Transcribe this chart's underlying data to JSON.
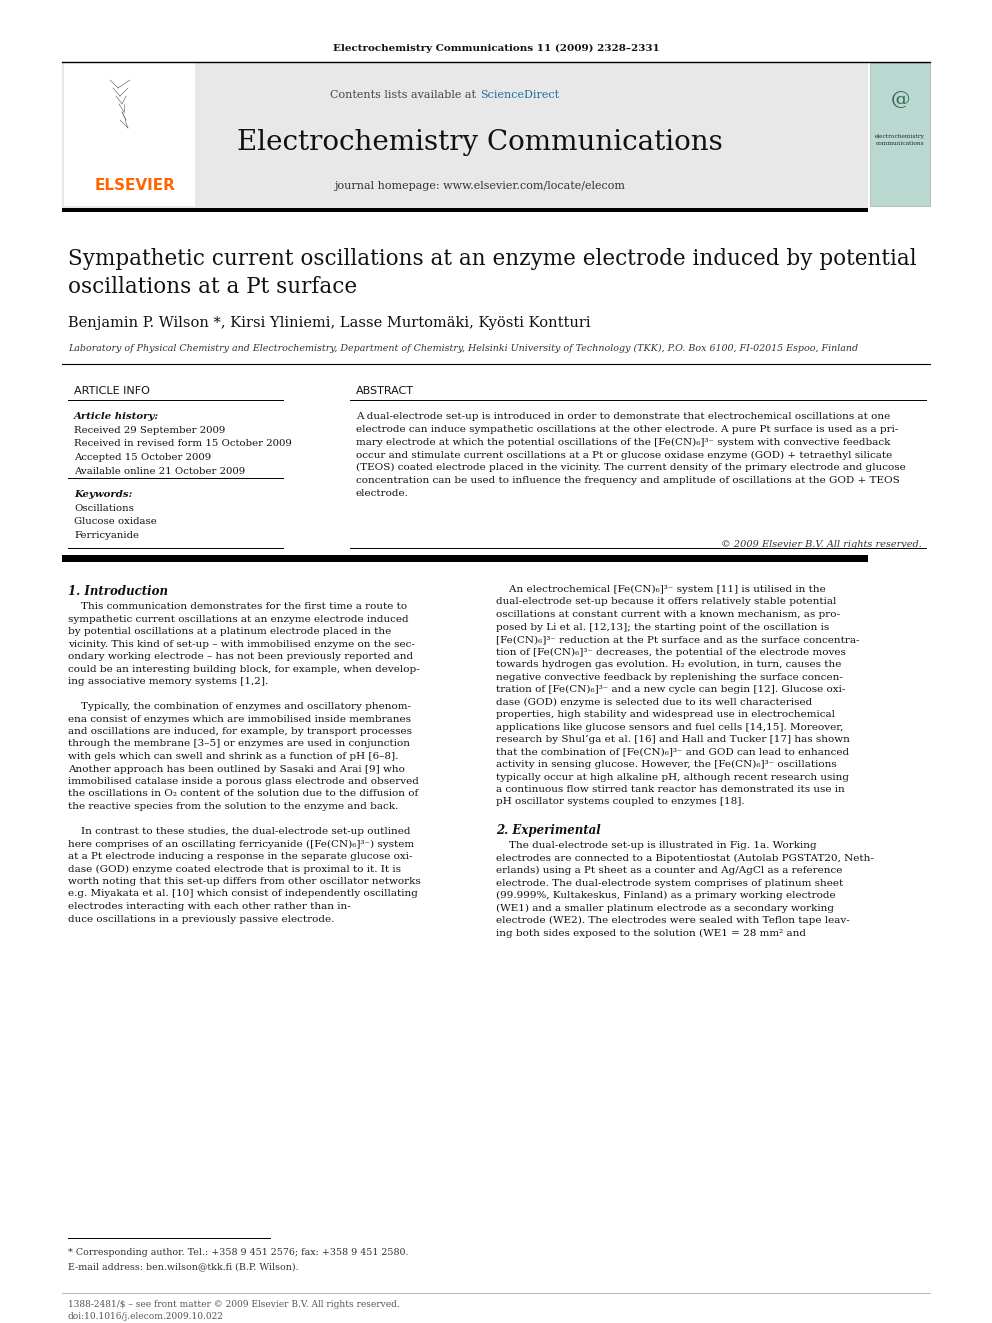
{
  "page_width": 9.92,
  "page_height": 13.23,
  "bg_color": "#ffffff",
  "journal_ref": "Electrochemistry Communications 11 (2009) 2328–2331",
  "header_bg": "#e8e8e8",
  "contents_text": "Contents lists available at ",
  "sciencedirect_text": "ScienceDirect",
  "sciencedirect_color": "#1a6fa0",
  "journal_name": "Electrochemistry Communications",
  "journal_homepage": "journal homepage: www.elsevier.com/locate/elecom",
  "article_title": "Sympathetic current oscillations at an enzyme electrode induced by potential\noscillations at a Pt surface",
  "authors": "Benjamin P. Wilson *, Kirsi Yliniemi, Lasse Murtomäki, Kyösti Kontturi",
  "affiliation": "Laboratory of Physical Chemistry and Electrochemistry, Department of Chemistry, Helsinki University of Technology (TKK), P.O. Box 6100, FI-02015 Espoo, Finland",
  "article_info_title": "ARTICLE INFO",
  "abstract_title": "ABSTRACT",
  "article_history_label": "Article history:",
  "received1": "Received 29 September 2009",
  "received2": "Received in revised form 15 October 2009",
  "accepted": "Accepted 15 October 2009",
  "available": "Available online 21 October 2009",
  "keywords_label": "Keywords:",
  "keyword1": "Oscillations",
  "keyword2": "Glucose oxidase",
  "keyword3": "Ferricyanide",
  "abstract_text_lines": [
    "A dual-electrode set-up is introduced in order to demonstrate that electrochemical oscillations at one",
    "electrode can induce sympathetic oscillations at the other electrode. A pure Pt surface is used as a pri-",
    "mary electrode at which the potential oscillations of the [Fe(CN)₆]³⁻ system with convective feedback",
    "occur and stimulate current oscillations at a Pt or glucose oxidase enzyme (GOD) + tetraethyl silicate",
    "(TEOS) coated electrode placed in the vicinity. The current density of the primary electrode and glucose",
    "concentration can be used to influence the frequency and amplitude of oscillations at the GOD + TEOS",
    "electrode."
  ],
  "copyright": "© 2009 Elsevier B.V. All rights reserved.",
  "intro_heading": "1. Introduction",
  "intro_lines": [
    "    This communication demonstrates for the first time a route to",
    "sympathetic current oscillations at an enzyme electrode induced",
    "by potential oscillations at a platinum electrode placed in the",
    "vicinity. This kind of set-up – with immobilised enzyme on the sec-",
    "ondary working electrode – has not been previously reported and",
    "could be an interesting building block, for example, when develop-",
    "ing associative memory systems [1,2].",
    "",
    "    Typically, the combination of enzymes and oscillatory phenom-",
    "ena consist of enzymes which are immobilised inside membranes",
    "and oscillations are induced, for example, by transport processes",
    "through the membrane [3–5] or enzymes are used in conjunction",
    "with gels which can swell and shrink as a function of pH [6–8].",
    "Another approach has been outlined by Sasaki and Arai [9] who",
    "immobilised catalase inside a porous glass electrode and observed",
    "the oscillations in O₂ content of the solution due to the diffusion of",
    "the reactive species from the solution to the enzyme and back.",
    "",
    "    In contrast to these studies, the dual-electrode set-up outlined",
    "here comprises of an oscillating ferricyanide ([Fe(CN)₆]³⁻) system",
    "at a Pt electrode inducing a response in the separate glucose oxi-",
    "dase (GOD) enzyme coated electrode that is proximal to it. It is",
    "worth noting that this set-up differs from other oscillator networks",
    "e.g. Miyakata et al. [10] which consist of independently oscillating",
    "electrodes interacting with each other rather than in-",
    "duce oscillations in a previously passive electrode."
  ],
  "right_col_lines": [
    "    An electrochemical [Fe(CN)₆]³⁻ system [11] is utilised in the",
    "dual-electrode set-up because it offers relatively stable potential",
    "oscillations at constant current with a known mechanism, as pro-",
    "posed by Li et al. [12,13]; the starting point of the oscillation is",
    "[Fe(CN)₆]³⁻ reduction at the Pt surface and as the surface concentra-",
    "tion of [Fe(CN)₆]³⁻ decreases, the potential of the electrode moves",
    "towards hydrogen gas evolution. H₂ evolution, in turn, causes the",
    "negative convective feedback by replenishing the surface concen-",
    "tration of [Fe(CN)₆]³⁻ and a new cycle can begin [12]. Glucose oxi-",
    "dase (GOD) enzyme is selected due to its well characterised",
    "properties, high stability and widespread use in electrochemical",
    "applications like glucose sensors and fuel cells [14,15]. Moreover,",
    "research by Shul’ga et al. [16] and Hall and Tucker [17] has shown",
    "that the combination of [Fe(CN)₆]³⁻ and GOD can lead to enhanced",
    "activity in sensing glucose. However, the [Fe(CN)₆]³⁻ oscillations",
    "typically occur at high alkaline pH, although recent research using",
    "a continuous flow stirred tank reactor has demonstrated its use in",
    "pH oscillator systems coupled to enzymes [18]."
  ],
  "section2_heading": "2. Experimental",
  "section2_lines": [
    "    The dual-electrode set-up is illustrated in Fig. 1a. Working",
    "electrodes are connected to a Bipotentiostat (Autolab PGSTAT20, Neth-",
    "erlands) using a Pt sheet as a counter and Ag/AgCl as a reference",
    "electrode. The dual-electrode system comprises of platinum sheet",
    "(99.999%, Kultakeskus, Finland) as a primary working electrode",
    "(WE1) and a smaller platinum electrode as a secondary working",
    "electrode (WE2). The electrodes were sealed with Teflon tape leav-",
    "ing both sides exposed to the solution (WE1 = 28 mm² and"
  ],
  "footnote_star": "* Corresponding author. Tel.: +358 9 451 2576; fax: +358 9 451 2580.",
  "footnote_email": "E-mail address: ben.wilson@tkk.fi (B.P. Wilson).",
  "footer_left": "1388-2481/$ – see front matter © 2009 Elsevier B.V. All rights reserved.",
  "footer_doi": "doi:10.1016/j.elecom.2009.10.022",
  "elsevier_color": "#ff6600",
  "black": "#000000",
  "dark": "#111111",
  "mid": "#333333",
  "light": "#555555"
}
